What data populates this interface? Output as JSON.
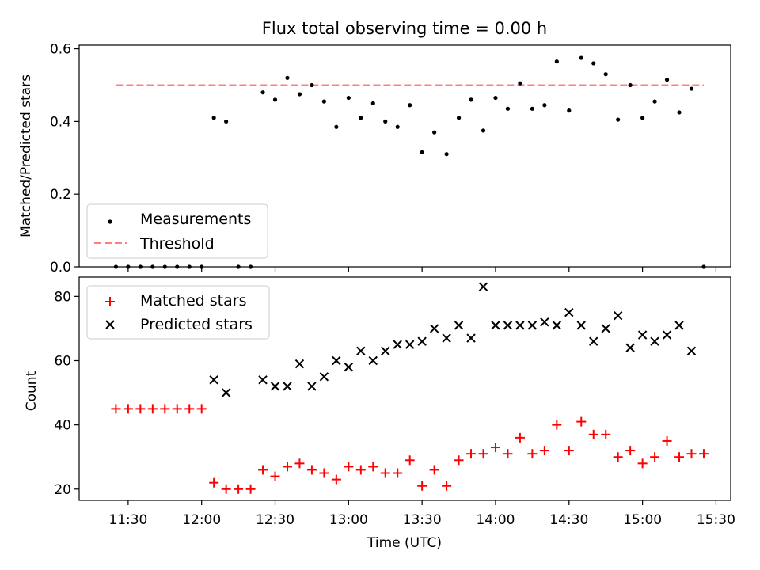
{
  "figure_title": "Flux total observing time = 0.00 h",
  "chart_data": [
    {
      "type": "scatter",
      "title": "Flux total observing time = 0.00 h",
      "xlabel": "",
      "ylabel": "Matched/Predicted stars",
      "ylim": [
        0,
        0.61
      ],
      "yticks": [
        "0.0",
        "0.2",
        "0.4",
        "0.6"
      ],
      "ytick_values": [
        0,
        0.2,
        0.4,
        0.6
      ],
      "grid": false,
      "legend": {
        "placement": "lower-left",
        "entries": [
          "Measurements",
          "Threshold"
        ]
      },
      "series": [
        {
          "name": "Measurements",
          "marker": "dot",
          "color": "#000000",
          "x": [
            "11:25",
            "11:30",
            "11:35",
            "11:40",
            "11:45",
            "11:50",
            "11:55",
            "12:00",
            "12:05",
            "12:10",
            "12:15",
            "12:20",
            "12:25",
            "12:30",
            "12:35",
            "12:40",
            "12:45",
            "12:50",
            "12:55",
            "13:00",
            "13:05",
            "13:10",
            "13:15",
            "13:20",
            "13:25",
            "13:30",
            "13:35",
            "13:40",
            "13:45",
            "13:50",
            "13:55",
            "14:00",
            "14:05",
            "14:10",
            "14:15",
            "14:20",
            "14:25",
            "14:30",
            "14:35",
            "14:40",
            "14:45",
            "14:50",
            "14:55",
            "15:00",
            "15:05",
            "15:10",
            "15:15",
            "15:20",
            "15:25"
          ],
          "y": [
            0,
            0,
            0,
            0,
            0,
            0,
            0,
            0,
            0.41,
            0.4,
            0,
            0,
            0.48,
            0.46,
            0.52,
            0.475,
            0.5,
            0.455,
            0.385,
            0.465,
            0.41,
            0.45,
            0.4,
            0.385,
            0.445,
            0.315,
            0.37,
            0.31,
            0.41,
            0.46,
            0.375,
            0.465,
            0.435,
            0.505,
            0.435,
            0.445,
            0.565,
            0.43,
            0.575,
            0.56,
            0.53,
            0.405,
            0.5,
            0.41,
            0.455,
            0.515,
            0.425,
            0.49,
            0
          ]
        },
        {
          "name": "Threshold",
          "line": "dashed",
          "color": "#ff7f7f",
          "x": [
            "11:25",
            "15:25"
          ],
          "y": [
            0.5,
            0.5
          ]
        }
      ]
    },
    {
      "type": "scatter",
      "title": "",
      "xlabel": "Time (UTC)",
      "ylabel": "Count",
      "ylim": [
        16.5,
        86
      ],
      "yticks": [
        "20",
        "40",
        "60",
        "80"
      ],
      "ytick_values": [
        20,
        40,
        60,
        80
      ],
      "xticks": [
        "11:30",
        "12:00",
        "12:30",
        "13:00",
        "13:30",
        "14:00",
        "14:30",
        "15:00",
        "15:30"
      ],
      "xlim": [
        "11:10",
        "15:36"
      ],
      "grid": false,
      "legend": {
        "placement": "upper-left",
        "entries": [
          "Matched stars",
          "Predicted stars"
        ]
      },
      "series": [
        {
          "name": "Matched stars",
          "marker": "+",
          "color": "#ff0000",
          "x": [
            "11:25",
            "11:30",
            "11:35",
            "11:40",
            "11:45",
            "11:50",
            "11:55",
            "12:00",
            "12:05",
            "12:10",
            "12:15",
            "12:20",
            "12:25",
            "12:30",
            "12:35",
            "12:40",
            "12:45",
            "12:50",
            "12:55",
            "13:00",
            "13:05",
            "13:10",
            "13:15",
            "13:20",
            "13:25",
            "13:30",
            "13:35",
            "13:40",
            "13:45",
            "13:50",
            "13:55",
            "14:00",
            "14:05",
            "14:10",
            "14:15",
            "14:20",
            "14:25",
            "14:30",
            "14:35",
            "14:40",
            "14:45",
            "14:50",
            "14:55",
            "15:00",
            "15:05",
            "15:10",
            "15:15",
            "15:20",
            "15:25"
          ],
          "y": [
            45,
            45,
            45,
            45,
            45,
            45,
            45,
            45,
            22,
            20,
            20,
            20,
            26,
            24,
            27,
            28,
            26,
            25,
            23,
            27,
            26,
            27,
            25,
            25,
            29,
            21,
            26,
            21,
            29,
            31,
            31,
            33,
            31,
            36,
            31,
            32,
            40,
            32,
            41,
            37,
            37,
            30,
            32,
            28,
            30,
            35,
            30,
            31,
            31
          ]
        },
        {
          "name": "Predicted stars",
          "marker": "x",
          "color": "#000000",
          "x": [
            "12:05",
            "12:10",
            "12:25",
            "12:30",
            "12:35",
            "12:40",
            "12:45",
            "12:50",
            "12:55",
            "13:00",
            "13:05",
            "13:10",
            "13:15",
            "13:20",
            "13:25",
            "13:30",
            "13:35",
            "13:40",
            "13:45",
            "13:50",
            "13:55",
            "14:00",
            "14:05",
            "14:10",
            "14:15",
            "14:20",
            "14:25",
            "14:30",
            "14:35",
            "14:40",
            "14:45",
            "14:50",
            "14:55",
            "15:00",
            "15:05",
            "15:10",
            "15:15",
            "15:20"
          ],
          "y": [
            54,
            50,
            54,
            52,
            52,
            59,
            52,
            55,
            60,
            58,
            63,
            60,
            63,
            65,
            65,
            66,
            70,
            67,
            71,
            67,
            83,
            71,
            71,
            71,
            71,
            72,
            71,
            75,
            71,
            66,
            70,
            74,
            64,
            68,
            66,
            68,
            71,
            63
          ]
        }
      ]
    }
  ]
}
